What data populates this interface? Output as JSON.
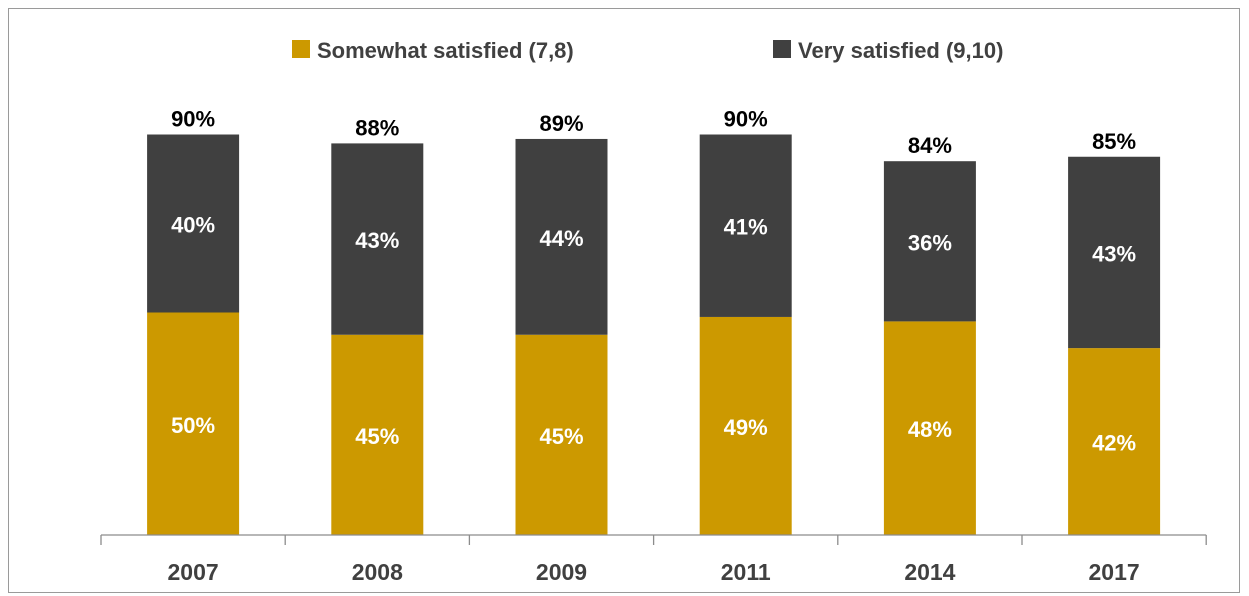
{
  "chart_data": {
    "type": "bar",
    "stacked": true,
    "categories": [
      "2007",
      "2008",
      "2009",
      "2011",
      "2014",
      "2017"
    ],
    "series": [
      {
        "name": "Somewhat satisfied (7,8)",
        "values": [
          50,
          45,
          45,
          49,
          48,
          42
        ],
        "labels": [
          "50%",
          "45%",
          "45%",
          "49%",
          "48%",
          "42%"
        ],
        "color": "#CC9900"
      },
      {
        "name": "Very satisfied (9,10)",
        "values": [
          40,
          43,
          44,
          41,
          36,
          43
        ],
        "labels": [
          "40%",
          "43%",
          "44%",
          "41%",
          "36%",
          "43%"
        ],
        "color": "#404040"
      }
    ],
    "totals": [
      "90%",
      "88%",
      "89%",
      "90%",
      "84%",
      "85%"
    ],
    "ylim": [
      0,
      100
    ],
    "grid": false,
    "legend_position": "top",
    "title": "",
    "xlabel": "",
    "ylabel": ""
  }
}
